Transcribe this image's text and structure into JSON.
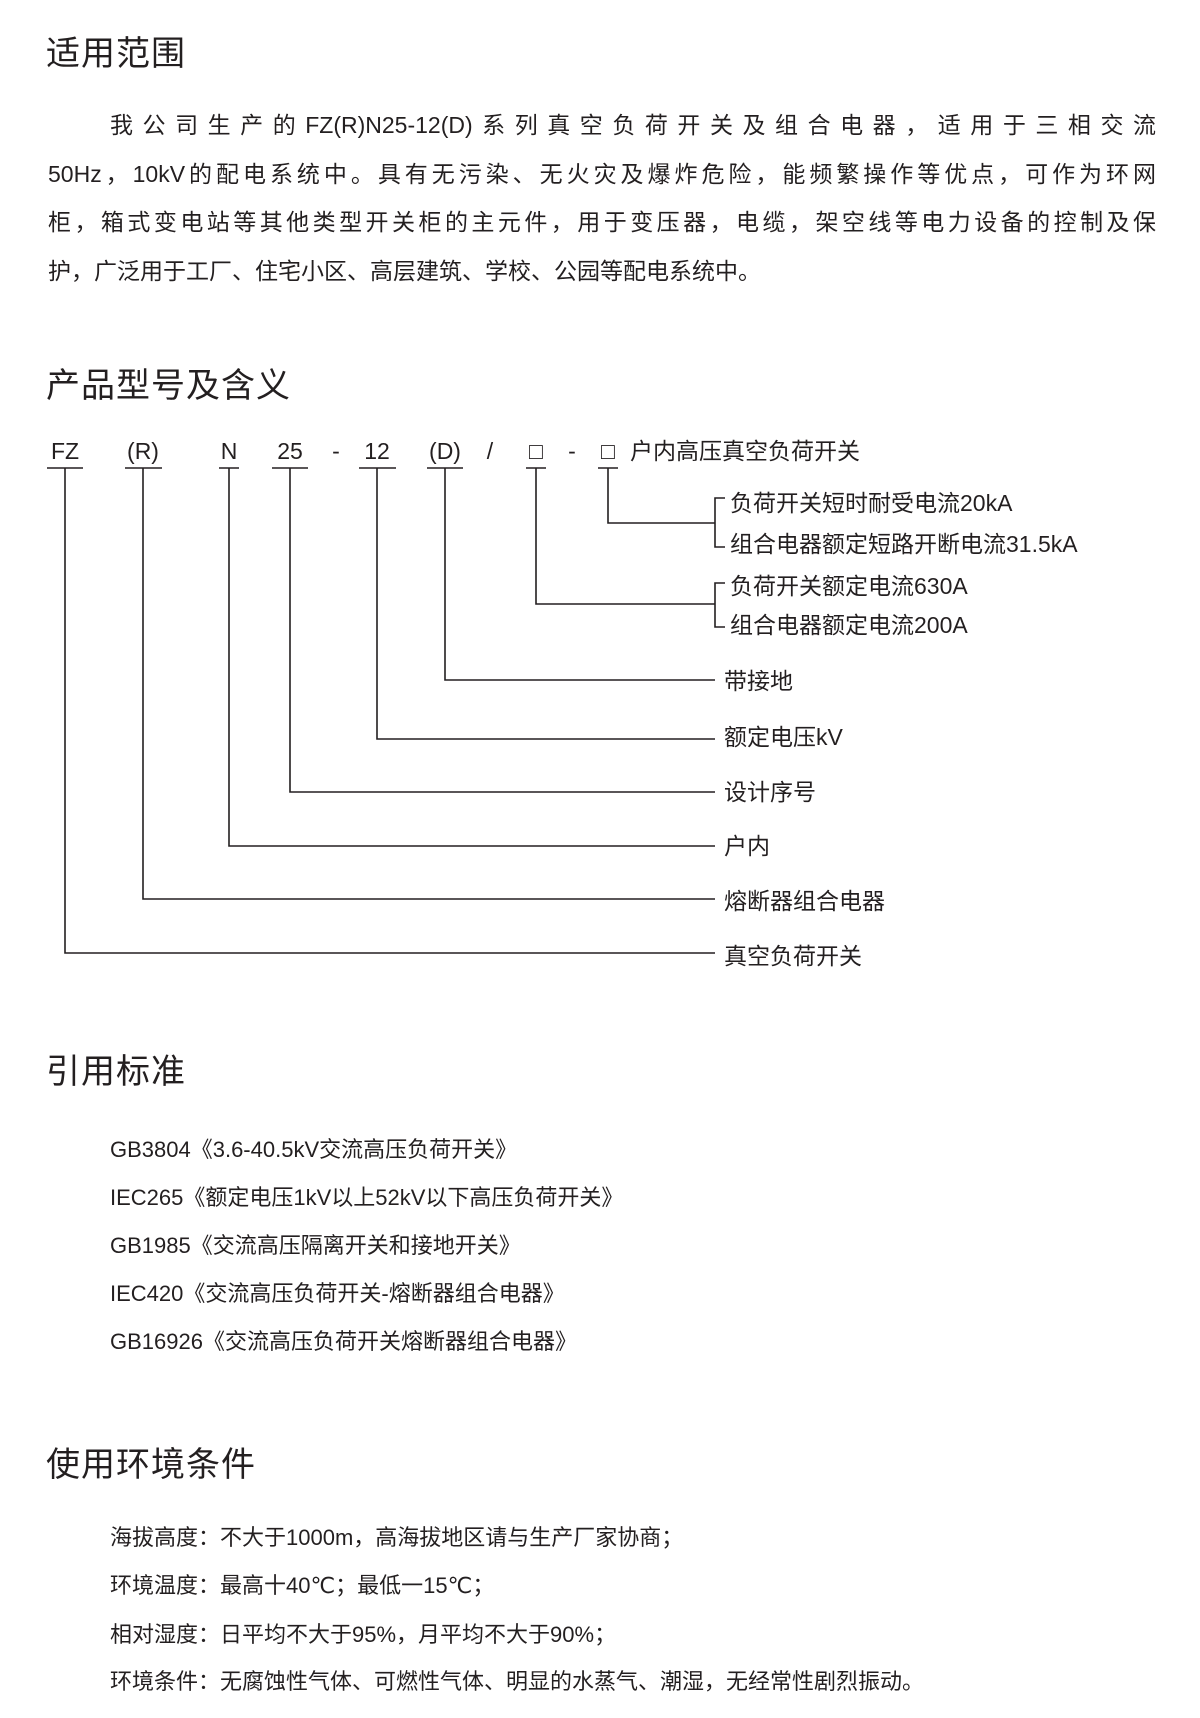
{
  "sections": {
    "scope": {
      "title": "适用范围",
      "lines": [
        "我公司生产的FZ(R)N25-12(D)系列真空负荷开关及组合电器，适用于三相交流",
        "50Hz，10kV的配电系统中。具有无污染、无火灾及爆炸危险，能频繁操作等优点，可作为环网",
        "柜，箱式变电站等其他类型开关柜的主元件，用于变压器，电缆，架空线等电力设备的控制及保",
        "护，广泛用于工厂、住宅小区、高层建筑、学校、公园等配电系统中。"
      ]
    },
    "model": {
      "title": "产品型号及含义",
      "codes": [
        "FZ",
        "(R)",
        "N",
        "25",
        "-",
        "12",
        "(D)",
        "/",
        "□",
        "-",
        "□"
      ],
      "product_name": "户内高压真空负荷开关",
      "meanings": {
        "box2_a": "负荷开关短时耐受电流20kA",
        "box2_b": "组合电器额定短路开断电流31.5kA",
        "box1_a": "负荷开关额定电流630A",
        "box1_b": "组合电器额定电流200A",
        "d": "带接地",
        "v12": "额定电压kV",
        "n25": "设计序号",
        "n": "户内",
        "r": "熔断器组合电器",
        "fz": "真空负荷开关"
      }
    },
    "standards": {
      "title": "引用标准",
      "items": [
        "GB3804《3.6-40.5kV交流高压负荷开关》",
        "IEC265《额定电压1kV以上52kV以下高压负荷开关》",
        "GB1985《交流高压隔离开关和接地开关》",
        "IEC420《交流高压负荷开关-熔断器组合电器》",
        "GB16926《交流高压负荷开关熔断器组合电器》"
      ]
    },
    "environment": {
      "title": "使用环境条件",
      "items": [
        "海拔高度：不大于1000m，高海拔地区请与生产厂家协商；",
        "环境温度：最高十40℃；最低一15℃；",
        "相对湿度：日平均不大于95%，月平均不大于90%；",
        "环境条件：无腐蚀性气体、可燃性气体、明显的水蒸气、潮湿，无经常性剧烈振动。"
      ]
    }
  }
}
